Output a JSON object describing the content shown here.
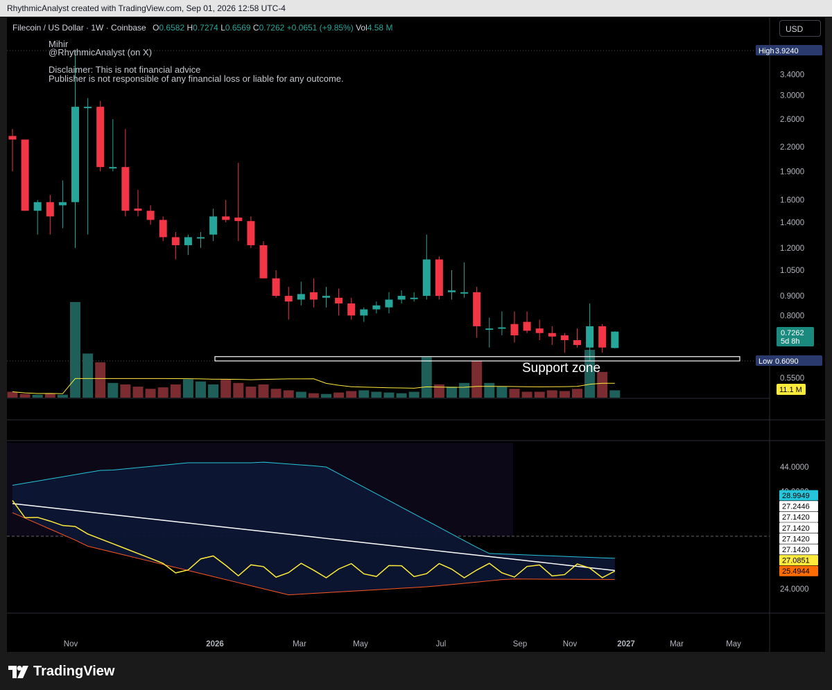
{
  "window": {
    "title": "RhythmicAnalyst created with TradingView.com, Sep 01, 2026 12:58 UTC-4"
  },
  "legend": {
    "symbol": "Filecoin / US Dollar · 1W · Coinbase",
    "o_label": "O",
    "o_value": "0.6582",
    "h_label": "H",
    "h_value": "0.7274",
    "l_label": "L",
    "l_value": "0.6569",
    "c_label": "C",
    "c_value": "0.7262",
    "change": "+0.0651 (+9.85%)",
    "vol_label": "Vol",
    "vol_value": "4.58 M"
  },
  "notes": {
    "author": "Mihir",
    "handle": "@RhythmicAnalyst (on X)",
    "disclaimer_1": "Disclaimer: This is not financial advice",
    "disclaimer_2": "Publisher is not responsible of any financial loss or liable for any outcome."
  },
  "currency_button": "USD",
  "annotation": {
    "support_text": "Support zone"
  },
  "price_axis": {
    "ticks": [
      "3.4000",
      "3.0000",
      "2.6000",
      "2.2000",
      "1.9000",
      "1.6000",
      "1.4000",
      "1.2000",
      "1.0500",
      "0.9000",
      "0.8000",
      "0.5500"
    ],
    "high_label": "High",
    "high_value": "3.9240",
    "low_label": "Low",
    "low_value": "0.6090",
    "last_price": "0.7262",
    "countdown": "5d 8h",
    "volume_tag": "11.1 M"
  },
  "indicator_axis": {
    "ticks": [
      "44.0000",
      "40.0000",
      "24.0000"
    ],
    "tags": [
      {
        "value": "28.9949",
        "bg": "#26c6da",
        "fg": "#000000"
      },
      {
        "value": "27.2446",
        "bg": "#ffffff",
        "fg": "#000000"
      },
      {
        "value": "27.1420",
        "bg": "#ffffff",
        "fg": "#000000"
      },
      {
        "value": "27.1420",
        "bg": "#ffffff",
        "fg": "#000000"
      },
      {
        "value": "27.1420",
        "bg": "#ffffff",
        "fg": "#000000"
      },
      {
        "value": "27.1420",
        "bg": "#ffffff",
        "fg": "#000000"
      },
      {
        "value": "27.0851",
        "bg": "#ffeb3b",
        "fg": "#000000"
      },
      {
        "value": "25.4944",
        "bg": "#ff6d00",
        "fg": "#000000"
      }
    ]
  },
  "time_axis": {
    "labels": [
      {
        "text": "Nov",
        "bold": false
      },
      {
        "text": "2026",
        "bold": true
      },
      {
        "text": "Mar",
        "bold": false
      },
      {
        "text": "May",
        "bold": false
      },
      {
        "text": "Jul",
        "bold": false
      },
      {
        "text": "Sep",
        "bold": false
      },
      {
        "text": "Nov",
        "bold": false
      },
      {
        "text": "2027",
        "bold": true
      },
      {
        "text": "Mar",
        "bold": false
      },
      {
        "text": "May",
        "bold": false
      }
    ]
  },
  "brand": {
    "name": "TradingView"
  },
  "colors": {
    "up": "#26a69a",
    "down": "#f23645",
    "up_volume": "#1f5f59",
    "down_volume": "#7a2c30",
    "volume_ma": "#ffeb3b",
    "rsi_line": "#ffeb3b",
    "mid_band": "#ffffff",
    "upper_band": "#26c6da",
    "lower_band": "#ff5722",
    "band_fill": "#0d1633"
  },
  "chart_data": {
    "type": "candlestick",
    "title": "Filecoin / US Dollar · 1W · Coinbase",
    "price_scale": "log",
    "candles": [
      {
        "o": 2.35,
        "h": 2.45,
        "l": 1.9,
        "c": 2.3
      },
      {
        "o": 2.3,
        "h": 2.3,
        "l": 1.5,
        "c": 1.5
      },
      {
        "o": 1.5,
        "h": 1.6,
        "l": 1.3,
        "c": 1.58
      },
      {
        "o": 1.58,
        "h": 1.65,
        "l": 1.3,
        "c": 1.45
      },
      {
        "o": 1.55,
        "h": 1.8,
        "l": 1.35,
        "c": 1.58
      },
      {
        "o": 1.58,
        "h": 3.92,
        "l": 1.2,
        "c": 2.8
      },
      {
        "o": 2.8,
        "h": 2.95,
        "l": 1.3,
        "c": 2.8
      },
      {
        "o": 2.8,
        "h": 2.9,
        "l": 1.9,
        "c": 1.95
      },
      {
        "o": 1.95,
        "h": 2.6,
        "l": 1.9,
        "c": 1.95
      },
      {
        "o": 1.95,
        "h": 2.45,
        "l": 1.45,
        "c": 1.5
      },
      {
        "o": 1.52,
        "h": 1.7,
        "l": 1.45,
        "c": 1.5
      },
      {
        "o": 1.5,
        "h": 1.55,
        "l": 1.38,
        "c": 1.42
      },
      {
        "o": 1.42,
        "h": 1.45,
        "l": 1.25,
        "c": 1.28
      },
      {
        "o": 1.28,
        "h": 1.32,
        "l": 1.12,
        "c": 1.22
      },
      {
        "o": 1.22,
        "h": 1.3,
        "l": 1.15,
        "c": 1.28
      },
      {
        "o": 1.28,
        "h": 1.32,
        "l": 1.2,
        "c": 1.28
      },
      {
        "o": 1.3,
        "h": 1.52,
        "l": 1.25,
        "c": 1.45
      },
      {
        "o": 1.45,
        "h": 1.6,
        "l": 1.4,
        "c": 1.42
      },
      {
        "o": 1.44,
        "h": 2.0,
        "l": 1.25,
        "c": 1.41
      },
      {
        "o": 1.41,
        "h": 1.45,
        "l": 1.2,
        "c": 1.22
      },
      {
        "o": 1.22,
        "h": 1.25,
        "l": 1.0,
        "c": 1.0
      },
      {
        "o": 1.0,
        "h": 1.05,
        "l": 0.89,
        "c": 0.9
      },
      {
        "o": 0.9,
        "h": 0.95,
        "l": 0.78,
        "c": 0.87
      },
      {
        "o": 0.88,
        "h": 0.98,
        "l": 0.85,
        "c": 0.91
      },
      {
        "o": 0.92,
        "h": 1.0,
        "l": 0.84,
        "c": 0.88
      },
      {
        "o": 0.89,
        "h": 0.95,
        "l": 0.84,
        "c": 0.9
      },
      {
        "o": 0.89,
        "h": 0.94,
        "l": 0.8,
        "c": 0.86
      },
      {
        "o": 0.86,
        "h": 0.89,
        "l": 0.78,
        "c": 0.8
      },
      {
        "o": 0.8,
        "h": 0.84,
        "l": 0.77,
        "c": 0.83
      },
      {
        "o": 0.83,
        "h": 0.87,
        "l": 0.81,
        "c": 0.85
      },
      {
        "o": 0.84,
        "h": 0.92,
        "l": 0.81,
        "c": 0.88
      },
      {
        "o": 0.88,
        "h": 0.93,
        "l": 0.86,
        "c": 0.9
      },
      {
        "o": 0.89,
        "h": 0.92,
        "l": 0.87,
        "c": 0.89
      },
      {
        "o": 0.9,
        "h": 1.3,
        "l": 0.88,
        "c": 1.12
      },
      {
        "o": 1.12,
        "h": 1.14,
        "l": 0.88,
        "c": 0.9
      },
      {
        "o": 0.92,
        "h": 1.05,
        "l": 0.88,
        "c": 0.93
      },
      {
        "o": 0.92,
        "h": 1.1,
        "l": 0.89,
        "c": 0.92
      },
      {
        "o": 0.92,
        "h": 0.95,
        "l": 0.7,
        "c": 0.75
      },
      {
        "o": 0.74,
        "h": 0.79,
        "l": 0.66,
        "c": 0.74
      },
      {
        "o": 0.74,
        "h": 0.82,
        "l": 0.71,
        "c": 0.745
      },
      {
        "o": 0.76,
        "h": 0.82,
        "l": 0.68,
        "c": 0.71
      },
      {
        "o": 0.77,
        "h": 0.82,
        "l": 0.72,
        "c": 0.73
      },
      {
        "o": 0.74,
        "h": 0.78,
        "l": 0.69,
        "c": 0.72
      },
      {
        "o": 0.72,
        "h": 0.75,
        "l": 0.67,
        "c": 0.705
      },
      {
        "o": 0.71,
        "h": 0.72,
        "l": 0.64,
        "c": 0.69
      },
      {
        "o": 0.69,
        "h": 0.74,
        "l": 0.66,
        "c": 0.67
      },
      {
        "o": 0.66,
        "h": 0.86,
        "l": 0.61,
        "c": 0.75
      },
      {
        "o": 0.75,
        "h": 0.76,
        "l": 0.64,
        "c": 0.66
      },
      {
        "o": 0.6582,
        "h": 0.7274,
        "l": 0.6569,
        "c": 0.7262
      }
    ],
    "volume": [
      8,
      5,
      4,
      6,
      4,
      130,
      60,
      48,
      20,
      18,
      15,
      12,
      14,
      18,
      25,
      22,
      18,
      25,
      20,
      15,
      18,
      12,
      10,
      8,
      6,
      5,
      7,
      9,
      10,
      8,
      7,
      6,
      8,
      55,
      18,
      15,
      20,
      50,
      20,
      15,
      12,
      8,
      8,
      10,
      9,
      12,
      65,
      35,
      10
    ],
    "support_zone": [
      0.609,
      0.625
    ],
    "high": 3.924,
    "low": 0.609,
    "indicator": {
      "upper_band_last": 28.9949,
      "mid_band_last": 27.2446,
      "line_last": 27.0851,
      "lower_band_last": 25.4944
    }
  }
}
